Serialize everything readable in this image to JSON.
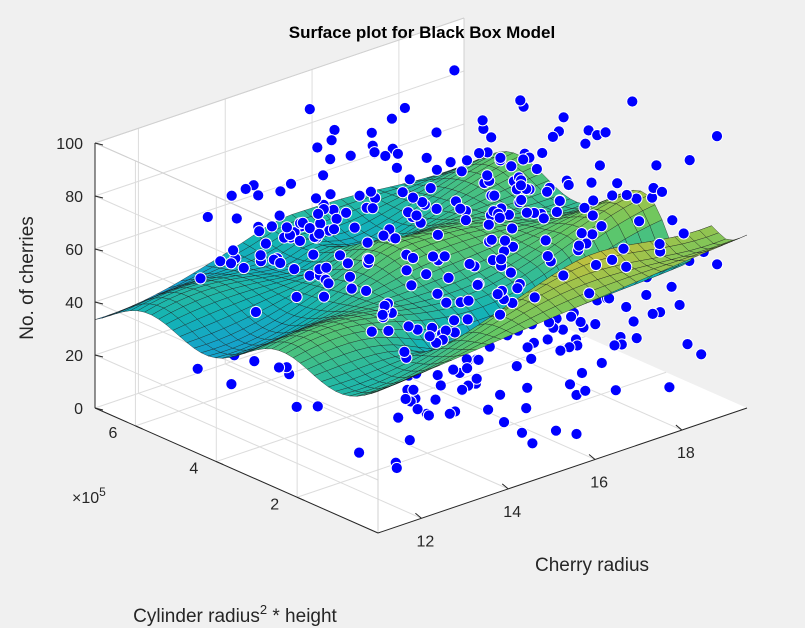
{
  "chart_data": {
    "type": "surface3d",
    "title": "Surface plot for Black Box Model",
    "xlabel": "Cherry radius",
    "ylabel_main": "Cylinder radius",
    "ylabel_sup": "2",
    "ylabel_tail": " * height",
    "zlabel": "No. of cherries",
    "xlim": [
      11,
      19.5
    ],
    "ylim": [
      0,
      700000
    ],
    "zlim": [
      0,
      100
    ],
    "x_ticks": [
      12,
      14,
      16,
      18
    ],
    "y_ticks": [
      2,
      4,
      6
    ],
    "y_tick_values": [
      200000,
      400000,
      600000
    ],
    "y_exponent_base": "×10",
    "y_exponent_power": "5",
    "z_ticks": [
      0,
      20,
      40,
      60,
      80,
      100
    ],
    "surface_colormap": "parula",
    "grid": true,
    "legend": "none",
    "scatter_color": "#0000ff",
    "scatter_edge": "#ffffff",
    "scatter_count": 560,
    "scatter_x_range": [
      11,
      19.5
    ],
    "scatter_y_range": [
      0,
      700000
    ],
    "scatter_z_mean": 48,
    "scatter_z_spread": 22
  }
}
